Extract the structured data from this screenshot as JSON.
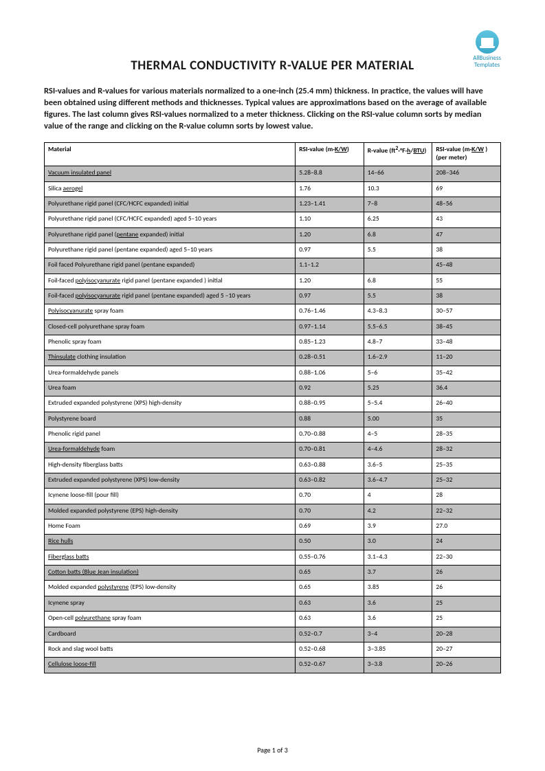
{
  "logo": {
    "line1": "AllBusiness",
    "line2": "Templates"
  },
  "title": "THERMAL CONDUCTIVITY  R-VALUE PER MATERIAL",
  "intro": "RSI-values and R-values for various materials normalized to a one-inch (25.4 mm) thickness. In practice, the values will have been obtained using different methods and thicknesses. Typical values are approximations based on the average of available figures. The last column gives RSI-values normalized to a meter thickness. Clicking on the RSI-value column sorts by median value of the range and clicking on the R-value column sorts by lowest value.",
  "headers": {
    "material": "Material",
    "rsi_pre": "RSI-value (m·",
    "rsi_kw": "K/W",
    "rsi_post": ")",
    "rvalue_pre": "R-value (ft",
    "rvalue_sup": "2",
    "rvalue_mid": "·°F·",
    "rvalue_h": "h",
    "rvalue_slash": "/",
    "rvalue_btu": "BTU",
    "rvalue_post": ")",
    "rsim_pre": "RSI-value (m·",
    "rsim_kw": "K/W",
    "rsim_post": " ) (per meter)"
  },
  "rows": [
    {
      "mat_html": "<span class='u'>Vacuum insulated panel</span>",
      "rsi": "5.28–8.8",
      "r": "14–66",
      "rsim": "208–346"
    },
    {
      "mat_html": "Silica <span class='u'>aerogel</span>",
      "rsi": "1.76",
      "r": "10.3",
      "rsim": "69"
    },
    {
      "mat_html": "Polyurethane rigid panel (CFC/HCFC expanded) initial",
      "rsi": "1.23–1.41",
      "r": "7–8",
      "rsim": "48–56"
    },
    {
      "mat_html": "Polyurethane rigid panel (CFC/HCFC expanded) aged 5–10 years",
      "rsi": "1.10",
      "r": "6.25",
      "rsim": "43"
    },
    {
      "mat_html": "Polyurethane rigid panel (<span class='u'>pentane</span> expanded) initial",
      "rsi": "1.20",
      "r": "6.8",
      "rsim": "47"
    },
    {
      "mat_html": "Polyurethane rigid panel (pentane expanded) aged 5–10 years",
      "rsi": "0.97",
      "r": "5.5",
      "rsim": "38"
    },
    {
      "mat_html": "Foil faced Polyurethane rigid panel (pentane expanded)",
      "rsi": "1.1–1.2",
      "r": "",
      "rsim": "45–48"
    },
    {
      "mat_html": "Foil-faced <span class='u'>polyisocyanurate</span> rigid panel (pentane expanded ) initial",
      "rsi": "1.20",
      "r": "6.8",
      "rsim": "55"
    },
    {
      "mat_html": "Foil-faced <span class='u'>polyisocyanurate</span> rigid panel (pentane expanded) aged 5 –10 years",
      "rsi": "0.97",
      "r": "5.5",
      "rsim": "38"
    },
    {
      "mat_html": "<span class='u'>Polyisocyanurate</span> spray foam",
      "rsi": "0.76–1.46",
      "r": "4.3–8.3",
      "rsim": "30–57"
    },
    {
      "mat_html": "Closed-cell polyurethane spray foam",
      "rsi": "0.97–1.14",
      "r": "5.5–6.5",
      "rsim": "38–45"
    },
    {
      "mat_html": "Phenolic spray foam",
      "rsi": "0.85–1.23",
      "r": "4.8–7",
      "rsim": "33–48"
    },
    {
      "mat_html": "<span class='u'>Thinsulate</span> clothing insulation",
      "rsi": "0.28–0.51",
      "r": "1.6–2.9",
      "rsim": "11–20"
    },
    {
      "mat_html": "Urea-formaldehyde panels",
      "rsi": "0.88–1.06",
      "r": "5–6",
      "rsim": "35–42"
    },
    {
      "mat_html": "Urea foam",
      "rsi": "0.92",
      "r": "5.25",
      "rsim": "36.4"
    },
    {
      "mat_html": "Extruded expanded polystyrene (XPS) high-density",
      "rsi": "0.88–0.95",
      "r": "5–5.4",
      "rsim": "26–40"
    },
    {
      "mat_html": "Polystyrene board",
      "rsi": "0.88",
      "r": "5.00",
      "rsim": "35"
    },
    {
      "mat_html": "Phenolic rigid panel",
      "rsi": "0.70–0.88",
      "r": "4–5",
      "rsim": "28–35"
    },
    {
      "mat_html": "<span class='u'>Urea-formaldehyde</span> foam",
      "rsi": "0.70–0.81",
      "r": "4–4.6",
      "rsim": "28–32"
    },
    {
      "mat_html": "High-density fiberglass batts",
      "rsi": "0.63–0.88",
      "r": "3.6–5",
      "rsim": "25–35"
    },
    {
      "mat_html": "Extruded expanded polystyrene (XPS) low-density",
      "rsi": "0.63–0.82",
      "r": "3.6–4.7",
      "rsim": "25–32"
    },
    {
      "mat_html": "Icynene loose-fill (pour fill)",
      "rsi": "0.70",
      "r": "4",
      "rsim": "28"
    },
    {
      "mat_html": "Molded expanded polystyrene (EPS) high-density",
      "rsi": "0.70",
      "r": "4.2",
      "rsim": "22–32"
    },
    {
      "mat_html": "Home Foam",
      "rsi": "0.69",
      "r": "3.9",
      "rsim": "27.0"
    },
    {
      "mat_html": "<span class='u'>Rice hulls</span>",
      "rsi": "0.50",
      "r": "3.0",
      "rsim": "24"
    },
    {
      "mat_html": "<span class='u'>Fiberglass batts</span>",
      "rsi": "0.55–0.76",
      "r": "3.1–4.3",
      "rsim": "22–30"
    },
    {
      "mat_html": "<span class='u'>Cotton batts (Blue Jean insulation)</span>",
      "rsi": "0.65",
      "r": "3.7",
      "rsim": "26"
    },
    {
      "mat_html": "Molded expanded <span class='u'>polystyrene</span> (EPS) low-density",
      "rsi": "0.65",
      "r": "3.85",
      "rsim": "26"
    },
    {
      "mat_html": "Icynene spray",
      "rsi": "0.63",
      "r": "3.6",
      "rsim": "25"
    },
    {
      "mat_html": "Open-cell <span class='u'>polyurethane</span> spray foam",
      "rsi": "0.63",
      "r": "3.6",
      "rsim": "25"
    },
    {
      "mat_html": "Cardboard",
      "rsi": "0.52–0.7",
      "r": "3–4",
      "rsim": "20–28"
    },
    {
      "mat_html": "Rock and slag wool batts",
      "rsi": "0.52–0.68",
      "r": "3–3.85",
      "rsim": "20–27"
    },
    {
      "mat_html": "<span class='u'>Cellulose loose-fill</span>",
      "rsi": "0.52–0.67",
      "r": "3–3.8",
      "rsim": "20–26"
    }
  ],
  "footer": "Page 1 of 3",
  "style": {
    "shade_color": "#c0c0c0",
    "border_color": "#000000",
    "accent_color": "#1a8bb5"
  }
}
